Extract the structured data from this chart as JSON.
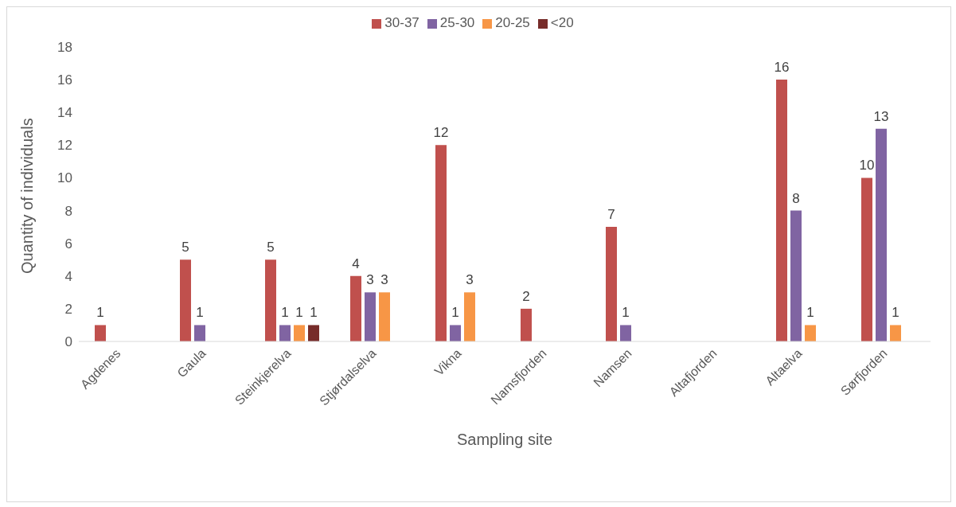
{
  "chart_data": {
    "type": "bar",
    "xlabel": "Sampling site",
    "ylabel": "Quantity of individuals",
    "categories": [
      "Agdenes",
      "Gaula",
      "Steinkjerelva",
      "Stjørdalselva",
      "Vikna",
      "Namsfjorden",
      "Namsen",
      "Altafjorden",
      "Altaelva",
      "Sørfjorden"
    ],
    "series": [
      {
        "name": "30-37",
        "color": "#c0504d",
        "values": [
          1,
          5,
          5,
          4,
          12,
          2,
          7,
          null,
          16,
          10
        ]
      },
      {
        "name": "25-30",
        "color": "#8064a2",
        "values": [
          null,
          1,
          1,
          3,
          1,
          null,
          1,
          null,
          8,
          13
        ]
      },
      {
        "name": "20-25",
        "color": "#f79646",
        "values": [
          null,
          null,
          1,
          3,
          3,
          null,
          null,
          null,
          1,
          1
        ]
      },
      {
        "name": "<20",
        "color": "#772c2a",
        "values": [
          null,
          null,
          1,
          null,
          null,
          null,
          null,
          null,
          null,
          null
        ]
      }
    ],
    "ylim": [
      0,
      18
    ],
    "yticks": [
      0,
      2,
      4,
      6,
      8,
      10,
      12,
      14,
      16,
      18
    ],
    "grid": false,
    "legend": "top",
    "data_labels": true
  }
}
